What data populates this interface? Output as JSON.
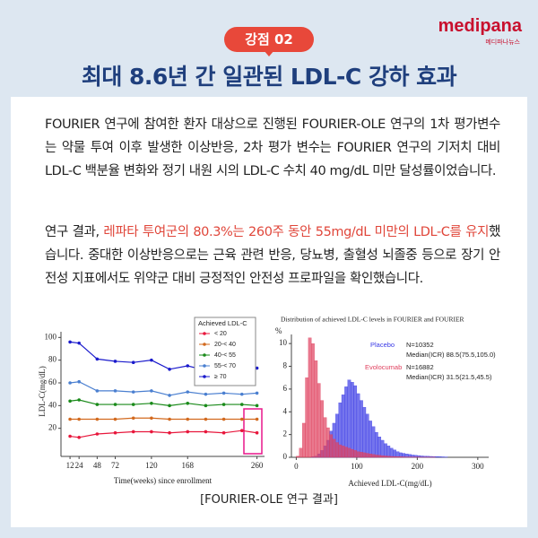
{
  "logo": {
    "name": "medipana",
    "sub": "메디파나뉴스"
  },
  "badge": "강점 02",
  "title": "최대 8.6년 간 일관된 LDL-C 강하 효과",
  "paragraph_1": "FOURIER 연구에 참여한 환자 대상으로 진행된 FOURIER-OLE 연구의 1차 평가변수는 약물 투여 이후 발생한 이상반응, 2차 평가 변수는 FOURIER 연구의 기저치 대비 LDL-C 백분율 변화와 정기 내원 시의 LDL-C 수치 40 mg/dL 미만 달성률이었습니다.",
  "paragraph_2": {
    "before": "연구 결과, ",
    "highlight": "레파타 투여군의 80.3%는 260주 동안 55mg/dL 미만의 LDL-C를 유지",
    "after": "했습니다. 중대한 이상반응으로는 근육 관련 반응, 당뇨병, 출혈성 뇌졸중 등으로 장기 안전성 지표에서도 위약군 대비 긍정적인 안전성 프로파일을 확인했습니다."
  },
  "caption": "[FOURIER-OLE 연구 결과]",
  "chart_data": [
    {
      "type": "line",
      "x_label": "Time(weeks) since enrollment",
      "y_label": "LDL-C(mg/dL)",
      "legend_title": "Achieved LDL-C",
      "legend": "upper right",
      "x": [
        12,
        24,
        48,
        72,
        96,
        120,
        144,
        168,
        192,
        216,
        240,
        260
      ],
      "xlim": [
        0,
        270
      ],
      "xticks": [
        12,
        24,
        48,
        72,
        120,
        168,
        260
      ],
      "ylim": [
        0,
        105
      ],
      "yticks": [
        20,
        40,
        60,
        80,
        100
      ],
      "series": [
        {
          "name": "< 20",
          "color": "#e8173c",
          "values": [
            13,
            12,
            15,
            16,
            17,
            17,
            16,
            17,
            17,
            16,
            18,
            16
          ]
        },
        {
          "name": "20-< 40",
          "color": "#d2691e",
          "values": [
            28,
            28,
            28,
            28,
            29,
            29,
            28,
            28,
            28,
            28,
            28,
            28
          ]
        },
        {
          "name": "40-< 55",
          "color": "#1a8a1a",
          "values": [
            44,
            45,
            41,
            41,
            41,
            42,
            40,
            42,
            40,
            41,
            41,
            40
          ]
        },
        {
          "name": "55-< 70",
          "color": "#4a7fd0",
          "values": [
            60,
            61,
            53,
            53,
            52,
            53,
            49,
            52,
            50,
            51,
            50,
            51
          ]
        },
        {
          "name": "≥ 70",
          "color": "#1a1acc",
          "values": [
            96,
            95,
            81,
            79,
            78,
            80,
            72,
            75,
            71,
            72,
            72,
            73
          ]
        }
      ]
    },
    {
      "type": "histogram",
      "title": "Distribution of achieved LDL-C levels in FOURIER and FOURIER",
      "x_label": "Achieved LDL-C(mg/dL)",
      "y_label": "%",
      "xlim": [
        -8,
        318
      ],
      "xticks": [
        0,
        100,
        200,
        300
      ],
      "ylim": [
        0,
        10.8
      ],
      "yticks": [
        0,
        2,
        4,
        6,
        8,
        10
      ],
      "bins": [
        0,
        5,
        10,
        15,
        20,
        25,
        30,
        35,
        40,
        45,
        50,
        55,
        60,
        65,
        70,
        75,
        80,
        85,
        90,
        95,
        100,
        105,
        110,
        115,
        120,
        125,
        130,
        135,
        140,
        145,
        150,
        155,
        160,
        165,
        170,
        175,
        180,
        185,
        190,
        195,
        200,
        205,
        210,
        215,
        220,
        225,
        230,
        235,
        240,
        245,
        250
      ],
      "series": [
        {
          "name": "Placebo",
          "color": "#3a3ae6",
          "n": "N=10352",
          "median": "Median(ICR) 88.5(75.5,105.0)",
          "values": [
            0,
            0,
            0,
            0,
            0,
            0.05,
            0.1,
            0.3,
            0.6,
            1,
            1.5,
            2.3,
            3,
            3.8,
            4.8,
            5.5,
            6.2,
            6.8,
            6.6,
            6.3,
            5.6,
            5,
            4.4,
            3.8,
            3.2,
            2.7,
            2.2,
            1.8,
            1.5,
            1.2,
            1,
            0.8,
            0.65,
            0.5,
            0.4,
            0.35,
            0.3,
            0.25,
            0.2,
            0.18,
            0.15,
            0.12,
            0.1,
            0.09,
            0.08,
            0.07,
            0.06,
            0.05,
            0.04,
            0.03
          ]
        },
        {
          "name": "Evolocumab",
          "color": "#e0405e",
          "n": "N=16882",
          "median": "Median(ICR) 31.5(21.5,45.5)",
          "values": [
            0.1,
            0.8,
            3,
            7,
            10.5,
            10,
            8.5,
            6.5,
            5,
            3.5,
            2.6,
            2,
            1.6,
            1.3,
            1.1,
            1,
            0.9,
            0.8,
            0.7,
            0.6,
            0.5,
            0.45,
            0.4,
            0.35,
            0.3,
            0.25,
            0.2,
            0.18,
            0.15,
            0.12,
            0.1,
            0.08,
            0.07,
            0.06,
            0.05,
            0.04,
            0.03,
            0.03,
            0.02,
            0.02,
            0.02,
            0.01,
            0.01,
            0.01,
            0.01,
            0.01,
            0,
            0,
            0,
            0
          ]
        }
      ]
    }
  ]
}
